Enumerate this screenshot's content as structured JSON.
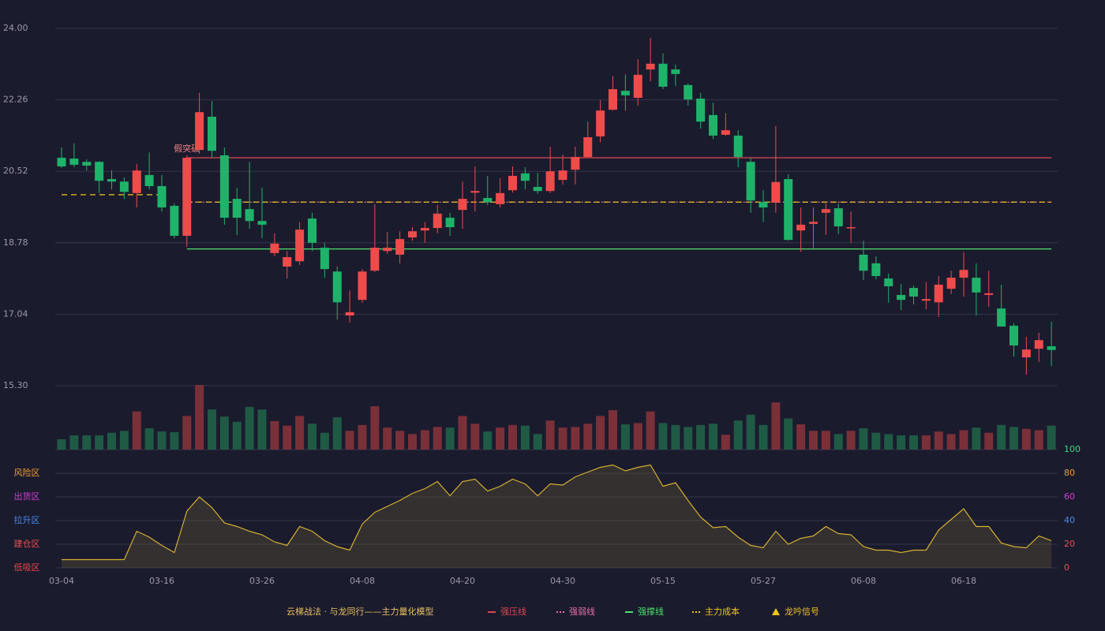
{
  "chart_data": {
    "type": "candlestick",
    "categories": [
      "03-04",
      null,
      null,
      null,
      null,
      null,
      null,
      null,
      "03-16",
      null,
      null,
      null,
      null,
      null,
      null,
      null,
      "03-26",
      null,
      null,
      null,
      null,
      null,
      null,
      null,
      "04-08",
      null,
      null,
      null,
      null,
      null,
      null,
      null,
      "04-20",
      null,
      null,
      null,
      null,
      null,
      null,
      null,
      "04-30",
      null,
      null,
      null,
      null,
      null,
      null,
      null,
      "05-15",
      null,
      null,
      null,
      null,
      null,
      null,
      null,
      "05-27",
      null,
      null,
      null,
      null,
      null,
      null,
      null,
      "06-08",
      null,
      null,
      null,
      null,
      null,
      null,
      null,
      "06-18",
      null,
      null,
      null,
      null,
      null,
      null,
      null
    ],
    "open": [
      20.85,
      20.83,
      20.75,
      20.75,
      20.33,
      20.27,
      19.99,
      20.43,
      20.16,
      19.68,
      18.95,
      21.04,
      21.85,
      20.91,
      19.85,
      19.6,
      19.31,
      18.53,
      18.2,
      18.33,
      19.37,
      18.66,
      18.08,
      17.01,
      17.39,
      18.1,
      18.58,
      18.49,
      18.91,
      19.08,
      19.14,
      19.39,
      19.58,
      20.0,
      19.87,
      19.72,
      20.06,
      20.47,
      20.14,
      20.04,
      20.31,
      20.56,
      20.87,
      21.37,
      22.02,
      22.48,
      22.31,
      23.0,
      23.14,
      23.0,
      22.62,
      22.29,
      21.89,
      21.41,
      21.39,
      20.75,
      19.77,
      19.76,
      20.33,
      19.08,
      19.24,
      19.51,
      19.62,
      19.14,
      18.49,
      18.28,
      17.91,
      17.51,
      17.68,
      17.37,
      17.33,
      17.66,
      17.93,
      17.93,
      17.51,
      17.18,
      16.76,
      15.99,
      16.2,
      16.26
    ],
    "close": [
      20.64,
      20.68,
      20.66,
      20.29,
      20.27,
      20.02,
      20.54,
      20.16,
      19.64,
      18.95,
      20.85,
      21.96,
      21.02,
      19.39,
      19.39,
      19.31,
      19.22,
      18.76,
      18.43,
      19.1,
      18.78,
      18.14,
      17.33,
      17.09,
      18.08,
      18.66,
      18.66,
      18.87,
      19.06,
      19.14,
      19.49,
      19.16,
      19.85,
      20.04,
      19.77,
      19.99,
      20.41,
      20.29,
      20.04,
      20.52,
      20.54,
      20.87,
      21.35,
      22.0,
      22.52,
      22.37,
      22.87,
      23.14,
      22.58,
      22.89,
      22.27,
      21.73,
      21.39,
      21.52,
      20.87,
      19.81,
      19.64,
      20.26,
      18.85,
      19.22,
      19.29,
      19.6,
      19.18,
      19.16,
      18.1,
      17.97,
      17.72,
      17.39,
      17.47,
      17.41,
      17.76,
      17.93,
      18.12,
      17.57,
      17.55,
      16.74,
      16.28,
      16.18,
      16.41,
      16.17
    ],
    "high": [
      21.1,
      21.2,
      20.81,
      20.77,
      20.54,
      20.37,
      20.7,
      20.98,
      20.43,
      19.74,
      20.91,
      22.43,
      22.23,
      21.1,
      20.12,
      20.75,
      20.12,
      19.01,
      18.58,
      19.28,
      19.51,
      18.78,
      18.2,
      17.62,
      18.14,
      19.72,
      19.04,
      19.06,
      19.16,
      19.28,
      19.7,
      19.51,
      20.27,
      20.64,
      20.41,
      20.35,
      20.64,
      20.62,
      20.48,
      21.12,
      20.93,
      21.12,
      21.73,
      22.25,
      22.84,
      22.88,
      23.25,
      23.77,
      23.39,
      23.12,
      22.66,
      22.43,
      22.19,
      21.94,
      21.52,
      20.85,
      20.06,
      21.62,
      20.45,
      19.64,
      19.64,
      19.74,
      19.74,
      19.54,
      18.83,
      18.45,
      18.03,
      17.78,
      17.74,
      17.82,
      17.97,
      18.1,
      18.55,
      18.28,
      18.1,
      17.76,
      16.82,
      16.49,
      16.59,
      16.86
    ],
    "low": [
      20.6,
      20.62,
      20.54,
      19.99,
      20.08,
      19.85,
      19.64,
      20.08,
      19.54,
      18.89,
      18.68,
      20.95,
      20.85,
      19.22,
      18.97,
      19.12,
      18.89,
      18.45,
      17.91,
      18.24,
      18.58,
      17.93,
      16.91,
      16.84,
      17.32,
      18.07,
      18.51,
      18.28,
      18.83,
      18.78,
      19.01,
      18.95,
      19.12,
      19.54,
      19.7,
      19.64,
      20.0,
      20.08,
      19.97,
      19.99,
      20.2,
      20.2,
      20.85,
      21.23,
      22.0,
      22.0,
      22.12,
      22.71,
      22.52,
      22.6,
      22.12,
      21.56,
      21.31,
      21.39,
      20.62,
      19.51,
      19.29,
      19.51,
      18.83,
      18.56,
      18.64,
      18.97,
      18.99,
      18.78,
      17.87,
      17.89,
      17.32,
      17.14,
      17.28,
      17.16,
      16.97,
      17.53,
      17.47,
      17.01,
      17.22,
      16.74,
      16.01,
      15.57,
      15.88,
      15.78
    ],
    "up_color": "#ef4b4b",
    "down_color": "#1fb36a",
    "ylim": [
      15.3,
      24.0
    ],
    "yticks": [
      {
        "value": 15.3,
        "label": "15.30"
      },
      {
        "value": 17.04,
        "label": "17.04"
      },
      {
        "value": 18.78,
        "label": "18.78"
      },
      {
        "value": 20.52,
        "label": "20.52"
      },
      {
        "value": 22.26,
        "label": "22.26"
      },
      {
        "value": 24.0,
        "label": "24.00"
      }
    ],
    "grid": true,
    "volume": [
      16,
      22,
      22,
      22,
      26,
      29,
      59,
      33,
      28,
      27,
      52,
      100,
      62,
      51,
      43,
      66,
      62,
      44,
      37,
      52,
      40,
      26,
      50,
      29,
      38,
      67,
      34,
      29,
      24,
      30,
      35,
      34,
      52,
      40,
      28,
      34,
      38,
      37,
      24,
      45,
      34,
      35,
      40,
      52,
      61,
      39,
      41,
      59,
      41,
      38,
      35,
      38,
      40,
      23,
      45,
      54,
      38,
      73,
      48,
      39,
      29,
      29,
      24,
      29,
      33,
      26,
      24,
      22,
      22,
      22,
      28,
      24,
      30,
      34,
      26,
      38,
      35,
      32,
      30,
      37
    ],
    "volume_lim": [
      0,
      100
    ],
    "volume_up_color": "#7a3038",
    "volume_down_color": "#1f5a45",
    "levels": [
      {
        "name": "强压线",
        "color": "#e0474c",
        "style": "solid",
        "annotation": "假突破",
        "annotation_color": "#f08080",
        "values": [
          null,
          null,
          null,
          null,
          null,
          null,
          null,
          null,
          null,
          null,
          20.85,
          20.85,
          20.85,
          20.85,
          20.85,
          20.85,
          20.85,
          20.85,
          20.85,
          20.85,
          20.85,
          20.85,
          20.85,
          20.85,
          20.85,
          20.85,
          20.85,
          20.85,
          20.85,
          20.85,
          20.85,
          20.85,
          20.85,
          20.85,
          20.85,
          20.85,
          20.85,
          20.85,
          20.85,
          20.85,
          20.85,
          20.85,
          20.85,
          20.85,
          20.85,
          20.85,
          20.85,
          20.85,
          20.85,
          20.85,
          20.85,
          20.85,
          20.85,
          20.85,
          20.85,
          20.85,
          20.85,
          20.85,
          20.85,
          20.85,
          20.85,
          20.85,
          20.85,
          20.85,
          20.85,
          20.85,
          20.85,
          20.85,
          20.85,
          20.85,
          20.85,
          20.85,
          20.85,
          20.85,
          20.85,
          20.85,
          20.85,
          20.85,
          20.85,
          20.85
        ]
      },
      {
        "name": "强弱线",
        "color": "#e070a8",
        "style": "dotted",
        "values": [
          null,
          null,
          null,
          null,
          null,
          null,
          null,
          null,
          null,
          null,
          19.77,
          19.77,
          19.77,
          19.77,
          19.77,
          19.77,
          19.77,
          19.77,
          19.77,
          19.77,
          19.77,
          19.77,
          19.77,
          19.77,
          19.77,
          19.77,
          19.77,
          19.77,
          19.77,
          19.77,
          19.77,
          19.77,
          19.77,
          19.77,
          19.77,
          19.77,
          19.77,
          19.77,
          19.77,
          19.77,
          19.77,
          19.77,
          19.77,
          19.77,
          19.77,
          19.77,
          19.77,
          19.77,
          19.77,
          19.77,
          19.77,
          19.77,
          19.77,
          19.77,
          19.77,
          19.77,
          19.77,
          19.77,
          19.77,
          19.77,
          19.77,
          19.77,
          19.77,
          19.77,
          19.77,
          19.77,
          19.77,
          19.77,
          19.77,
          19.77,
          19.77,
          19.77,
          19.77,
          19.77,
          19.77,
          19.77,
          19.77,
          19.77,
          19.77,
          19.77
        ]
      },
      {
        "name": "强撑线",
        "color": "#4ee06a",
        "style": "solid",
        "values": [
          null,
          null,
          null,
          null,
          null,
          null,
          null,
          null,
          null,
          null,
          18.63,
          18.63,
          18.63,
          18.63,
          18.63,
          18.63,
          18.63,
          18.63,
          18.63,
          18.63,
          18.63,
          18.63,
          18.63,
          18.63,
          18.63,
          18.63,
          18.63,
          18.63,
          18.63,
          18.63,
          18.63,
          18.63,
          18.63,
          18.63,
          18.63,
          18.63,
          18.63,
          18.63,
          18.63,
          18.63,
          18.63,
          18.63,
          18.63,
          18.63,
          18.63,
          18.63,
          18.63,
          18.63,
          18.63,
          18.63,
          18.63,
          18.63,
          18.63,
          18.63,
          18.63,
          18.63,
          18.63,
          18.63,
          18.63,
          18.63,
          18.63,
          18.63,
          18.63,
          18.63,
          18.63,
          18.63,
          18.63,
          18.63,
          18.63,
          18.63,
          18.63,
          18.63,
          18.63,
          18.63,
          18.63,
          18.63,
          18.63,
          18.63,
          18.63,
          18.63
        ]
      },
      {
        "name": "主力成本",
        "color": "#f0c419",
        "style": "dashed",
        "values": [
          19.95,
          19.95,
          19.95,
          19.95,
          19.95,
          19.95,
          19.95,
          19.95,
          19.95,
          null,
          19.77,
          19.77,
          19.77,
          19.77,
          19.77,
          19.77,
          19.77,
          19.77,
          19.77,
          19.77,
          19.77,
          19.77,
          19.77,
          19.77,
          19.77,
          19.77,
          19.77,
          19.77,
          19.77,
          19.77,
          19.77,
          19.77,
          19.77,
          19.77,
          19.77,
          19.77,
          19.77,
          19.77,
          19.77,
          19.77,
          19.77,
          19.77,
          19.77,
          19.77,
          19.77,
          19.77,
          19.77,
          19.77,
          19.77,
          19.77,
          19.77,
          19.77,
          19.77,
          19.77,
          19.77,
          19.77,
          19.77,
          19.77,
          19.77,
          19.77,
          19.77,
          19.77,
          19.77,
          19.77,
          19.77,
          19.77,
          19.77,
          19.77,
          19.77,
          19.77,
          19.77,
          19.77,
          19.77,
          19.77,
          19.77,
          19.77,
          19.77,
          19.77,
          19.77,
          19.77
        ]
      }
    ],
    "signal": {
      "name": "龙吟信号",
      "color": "#f0c419"
    },
    "indicator": {
      "name": "云梯战法 · 与龙同行——主力量化模型",
      "color": "#d4b030",
      "legend_color": "#e8c060",
      "values": [
        7,
        7,
        7,
        7,
        7,
        7,
        31,
        26,
        19,
        13,
        48,
        60,
        51,
        38,
        35,
        31,
        28,
        22,
        19,
        35,
        31,
        23,
        18,
        15,
        37,
        47,
        52,
        57,
        63,
        67,
        73,
        61,
        73,
        75,
        65,
        69,
        75,
        71,
        61,
        71,
        70,
        77,
        81,
        85,
        87,
        82,
        85,
        87,
        69,
        72,
        57,
        43,
        34,
        35,
        26,
        19,
        17,
        31,
        20,
        25,
        27,
        35,
        29,
        28,
        18,
        15,
        15,
        13,
        15,
        15,
        32,
        41,
        50,
        35,
        35,
        21,
        18,
        17,
        27,
        23
      ],
      "ylim": [
        0,
        100
      ],
      "yticks": [
        0,
        20,
        40,
        60,
        80,
        100
      ],
      "ytick_colors": [
        "#e85050",
        "#e85050",
        "#4a8ae8",
        "#d040d0",
        "#f0a030",
        "#3ddc84"
      ],
      "zones": [
        {
          "label": "风险区",
          "value": 80,
          "color": "#f0a030"
        },
        {
          "label": "出货区",
          "value": 60,
          "color": "#d040d0"
        },
        {
          "label": "拉升区",
          "value": 40,
          "color": "#4a8ae8"
        },
        {
          "label": "建仓区",
          "value": 20,
          "color": "#e85050"
        },
        {
          "label": "低吸区",
          "value": 0,
          "color": "#f04848"
        }
      ]
    }
  }
}
